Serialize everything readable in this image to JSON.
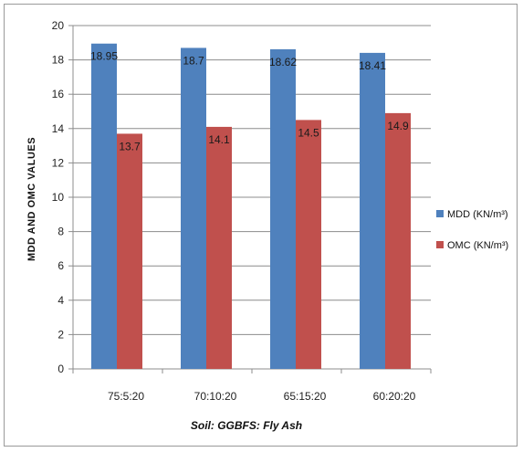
{
  "chart_data": {
    "type": "bar",
    "categories": [
      "75:5:20",
      "70:10:20",
      "65:15:20",
      "60:20:20"
    ],
    "series": [
      {
        "name": "MDD (KN/m³)",
        "values": [
          18.95,
          18.7,
          18.62,
          18.41
        ],
        "color": "#4f81bd",
        "labels": [
          "18.95",
          "18.7",
          "18.62",
          "18.41"
        ]
      },
      {
        "name": "OMC (KN/m³)",
        "values": [
          13.7,
          14.1,
          14.5,
          14.9
        ],
        "color": "#c0504d",
        "labels": [
          "13.7",
          "14.1",
          "14.5",
          "14.9"
        ]
      }
    ],
    "xlabel": "Soil: GGBFS: Fly Ash",
    "ylabel": "MDD AND OMC VALUES",
    "ylim": [
      0,
      20
    ],
    "yticks": [
      "0",
      "2",
      "4",
      "6",
      "8",
      "10",
      "12",
      "14",
      "16",
      "18",
      "20"
    ],
    "grid": true,
    "legend": "right"
  }
}
